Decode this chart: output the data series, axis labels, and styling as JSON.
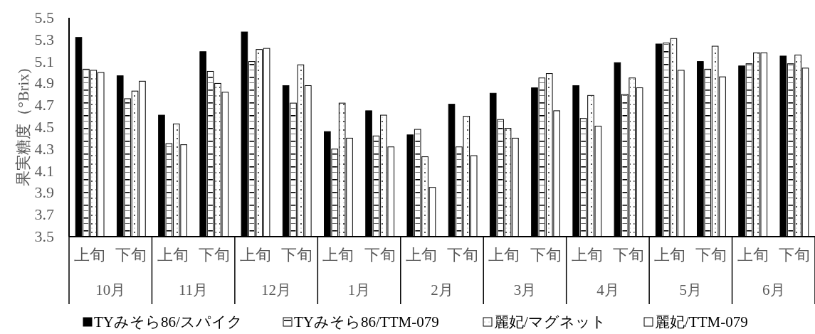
{
  "chart_data": {
    "type": "bar",
    "ylabel": "果実糖度（°Brix)",
    "categories": [
      "上旬",
      "下旬",
      "上旬",
      "下旬",
      "上旬",
      "下旬",
      "上旬",
      "下旬",
      "上旬",
      "下旬",
      "上旬",
      "下旬",
      "上旬",
      "下旬",
      "上旬",
      "下旬",
      "上旬",
      "下旬"
    ],
    "annotations": [
      "10月",
      "11月",
      "12月",
      "1月",
      "2月",
      "3月",
      "4月",
      "5月",
      "6月"
    ],
    "series": [
      {
        "name": "TYみそら86/スパイク",
        "color": "#000000",
        "values": [
          5.32,
          4.97,
          4.61,
          5.19,
          5.37,
          4.88,
          4.46,
          4.65,
          4.43,
          4.71,
          4.81,
          4.86,
          4.88,
          5.09,
          5.26,
          5.1,
          5.06,
          5.15
        ]
      },
      {
        "name": "TYみそら86/TTM-079",
        "color": "#ffffff",
        "values": [
          5.03,
          4.76,
          4.35,
          5.01,
          5.1,
          4.72,
          4.3,
          4.42,
          4.48,
          4.32,
          4.57,
          4.95,
          4.58,
          4.8,
          5.27,
          5.03,
          5.08,
          5.08
        ]
      },
      {
        "name": "麗妃/マグネット",
        "color": "#ffffff",
        "values": [
          5.02,
          4.83,
          4.53,
          4.9,
          5.21,
          5.07,
          4.72,
          4.61,
          4.23,
          4.6,
          4.49,
          4.99,
          4.79,
          4.95,
          5.31,
          5.24,
          5.18,
          5.16
        ]
      },
      {
        "name": "麗妃/TTM-079",
        "color": "#ffffff",
        "values": [
          5.0,
          4.92,
          4.34,
          4.82,
          5.22,
          4.88,
          4.4,
          4.32,
          3.95,
          4.24,
          4.4,
          4.65,
          4.51,
          4.86,
          5.02,
          4.96,
          5.18,
          5.04
        ]
      }
    ],
    "ylim": [
      3.5,
      5.5
    ],
    "yticks": [
      3.5,
      3.7,
      3.9,
      4.1,
      4.3,
      4.5,
      4.7,
      4.9,
      5.1,
      5.3,
      5.5
    ],
    "grid": false,
    "legend": "bottom"
  }
}
